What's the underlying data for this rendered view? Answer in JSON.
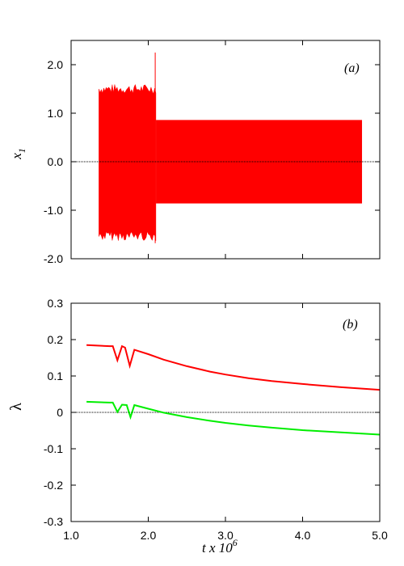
{
  "chart_data": [
    {
      "type": "area",
      "panel_label": "(a)",
      "ylabel": "x",
      "ylabel_sub": "1",
      "xlim": [
        1.0,
        5.0
      ],
      "ylim": [
        -2.0,
        2.5
      ],
      "yticks": [
        -2.0,
        -1.0,
        0.0,
        1.0,
        2.0
      ],
      "yticklabels": [
        "-2.0",
        "-1.0",
        "0.0",
        "1.0",
        "2.0"
      ],
      "xticks": [
        1.0,
        2.0,
        3.0,
        4.0,
        5.0
      ],
      "zero_line": true,
      "colors": {
        "series": "#ff0000",
        "zero_line": "#000000"
      },
      "series": [
        {
          "segments": [
            {
              "x_start": 1.36,
              "x_end": 2.1,
              "upper": 1.52,
              "lower": -1.55,
              "chaotic": true
            },
            {
              "x_start": 2.1,
              "x_end": 4.77,
              "upper": 0.86,
              "lower": -0.86,
              "chaotic": false
            }
          ],
          "spike": {
            "x": 2.09,
            "max": 2.25,
            "min": -1.68
          }
        }
      ]
    },
    {
      "type": "line",
      "panel_label": "(b)",
      "ylabel": "λ",
      "xlabel_parts": [
        "t x 10",
        "6"
      ],
      "xlim": [
        1.0,
        5.0
      ],
      "ylim": [
        -0.3,
        0.3
      ],
      "yticks": [
        -0.3,
        -0.2,
        -0.1,
        0.0,
        0.1,
        0.2,
        0.3
      ],
      "yticklabels": [
        "-0.3",
        "-0.2",
        "-0.1",
        "0",
        "0.1",
        "0.2",
        "0.3"
      ],
      "xticks": [
        1.0,
        2.0,
        3.0,
        4.0,
        5.0
      ],
      "xticklabels": [
        "1.0",
        "2.0",
        "3.0",
        "4.0",
        "5.0"
      ],
      "zero_line": true,
      "colors": {
        "zero_line": "#000000"
      },
      "series": [
        {
          "color": "#ff0000",
          "x": [
            1.2,
            1.5,
            1.54,
            1.6,
            1.66,
            1.7,
            1.76,
            1.82,
            2.0,
            2.2,
            2.5,
            2.8,
            3.0,
            3.3,
            3.6,
            4.0,
            4.5,
            5.0
          ],
          "y": [
            0.185,
            0.182,
            0.182,
            0.143,
            0.182,
            0.178,
            0.128,
            0.172,
            0.16,
            0.145,
            0.127,
            0.112,
            0.104,
            0.094,
            0.086,
            0.078,
            0.069,
            0.062
          ]
        },
        {
          "color": "#00ee00",
          "x": [
            1.2,
            1.5,
            1.54,
            1.6,
            1.66,
            1.72,
            1.77,
            1.82,
            2.0,
            2.2,
            2.5,
            2.8,
            3.0,
            3.3,
            3.6,
            4.0,
            4.5,
            5.0
          ],
          "y": [
            0.029,
            0.027,
            0.027,
            0.001,
            0.021,
            0.02,
            -0.013,
            0.02,
            0.01,
            -0.001,
            -0.013,
            -0.023,
            -0.029,
            -0.036,
            -0.042,
            -0.049,
            -0.055,
            -0.061
          ]
        }
      ]
    }
  ]
}
